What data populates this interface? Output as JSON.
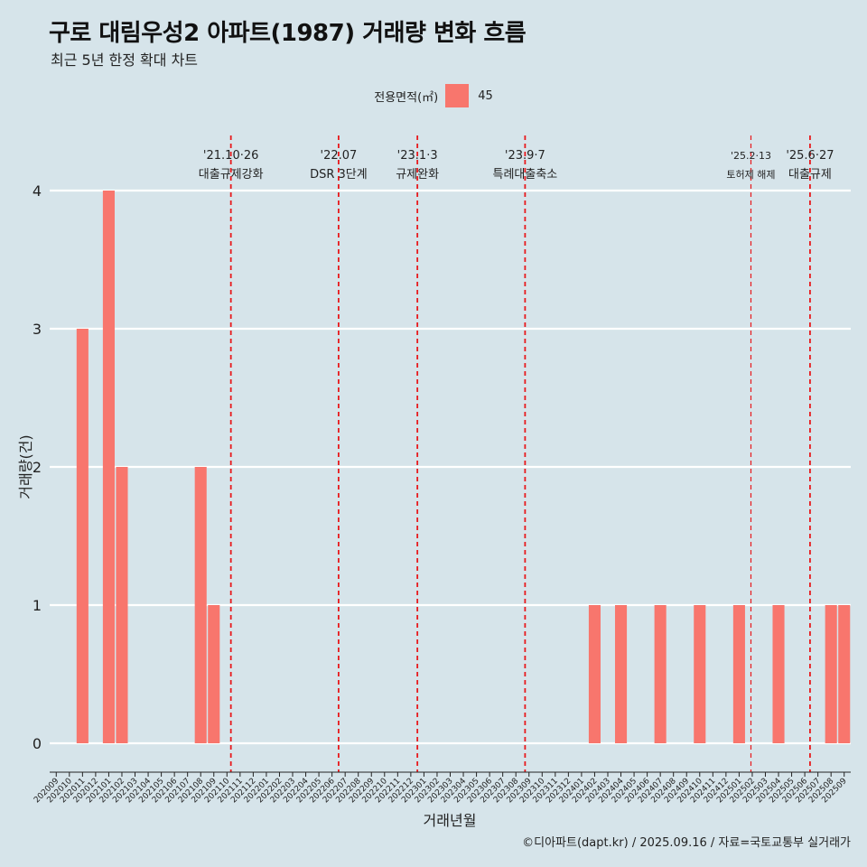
{
  "title": "구로 대림우성2 아파트(1987) 거래량 변화 흐름",
  "subtitle": "최근 5년 한정 확대 차트",
  "caption": "©디아파트(dapt.kr) / 2025.09.16 / 자료=국토교통부 실거래가",
  "legend": {
    "title": "전용면적(㎡)",
    "label": "45",
    "color": "#f8766d"
  },
  "colors": {
    "background": "#d6e4ea",
    "bar": "#f8766d",
    "event_line": "#e8191c",
    "grid": "#ffffff"
  },
  "chart_data": {
    "type": "bar",
    "title": "구로 대림우성2 아파트(1987) 거래량 변화 흐름",
    "subtitle": "최근 5년 한정 확대 차트",
    "xlabel": "거래년월",
    "ylabel": "거래량(건)",
    "ylim": [
      0,
      4
    ],
    "yticks": [
      0,
      1,
      2,
      3,
      4
    ],
    "categories": [
      "202009",
      "202010",
      "202011",
      "202012",
      "202101",
      "202102",
      "202103",
      "202104",
      "202105",
      "202106",
      "202107",
      "202108",
      "202109",
      "202110",
      "202111",
      "202112",
      "202201",
      "202202",
      "202203",
      "202204",
      "202205",
      "202206",
      "202207",
      "202208",
      "202209",
      "202210",
      "202211",
      "202212",
      "202301",
      "202302",
      "202303",
      "202304",
      "202305",
      "202306",
      "202307",
      "202308",
      "202309",
      "202310",
      "202311",
      "202312",
      "202401",
      "202402",
      "202403",
      "202404",
      "202405",
      "202406",
      "202407",
      "202408",
      "202409",
      "202410",
      "202411",
      "202412",
      "202501",
      "202502",
      "202503",
      "202504",
      "202505",
      "202506",
      "202507",
      "202508",
      "202509"
    ],
    "series": [
      {
        "name": "45",
        "values": [
          0,
          0,
          3,
          0,
          4,
          2,
          0,
          0,
          0,
          0,
          0,
          2,
          1,
          0,
          0,
          0,
          0,
          0,
          0,
          0,
          0,
          0,
          0,
          0,
          0,
          0,
          0,
          0,
          0,
          0,
          0,
          0,
          0,
          0,
          0,
          0,
          0,
          0,
          0,
          0,
          0,
          1,
          0,
          1,
          0,
          0,
          1,
          0,
          0,
          1,
          0,
          0,
          1,
          0,
          0,
          1,
          0,
          0,
          0,
          1,
          1
        ]
      }
    ],
    "events": [
      {
        "date": "'21.10·26",
        "label": "대출규제강화",
        "month": "202110",
        "offset": 0.8
      },
      {
        "date": "'22.07",
        "label": "DSR 3단계",
        "month": "202207",
        "offset": 0.0
      },
      {
        "date": "'23.1·3",
        "label": "규제완화",
        "month": "202301",
        "offset": 0.0
      },
      {
        "date": "'23.9·7",
        "label": "특례대출축소",
        "month": "202309",
        "offset": 0.2
      },
      {
        "date": "'25.2·13",
        "label": "토허제 해제",
        "month": "202502",
        "offset": 0.4,
        "small": true
      },
      {
        "date": "'25.6·27",
        "label": "대출규제",
        "month": "202506",
        "offset": 0.9
      }
    ]
  }
}
